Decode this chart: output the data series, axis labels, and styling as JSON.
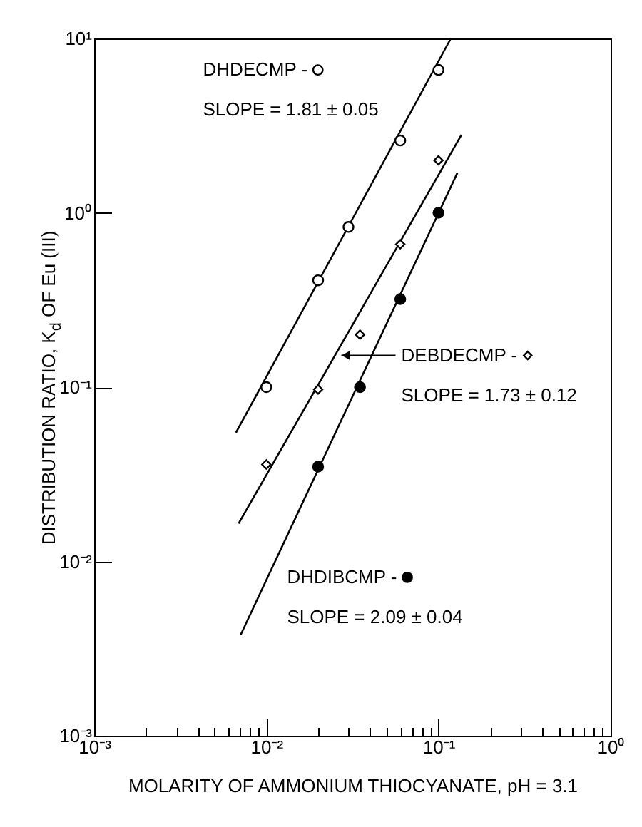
{
  "chart_data": {
    "type": "scatter",
    "xlabel": "MOLARITY OF AMMONIUM THIOCYANATE, pH = 3.1",
    "ylabel": "DISTRIBUTION RATIO, K$_{d}$ OF Eu (III)",
    "log": "xy",
    "grid": false,
    "legend": "top left",
    "xlim": [
      0.001,
      1
    ],
    "ylim": [
      0.001,
      10
    ],
    "xticks": [
      {
        "value": 0.001,
        "label": "10⁻³"
      },
      {
        "value": 0.002,
        "label": null
      },
      {
        "value": 0.003,
        "label": null
      },
      {
        "value": 0.004,
        "label": null
      },
      {
        "value": 0.005,
        "label": null
      },
      {
        "value": 0.006,
        "label": null
      },
      {
        "value": 0.007,
        "label": null
      },
      {
        "value": 0.008,
        "label": null
      },
      {
        "value": 0.009,
        "label": null
      },
      {
        "value": 0.01,
        "label": "10⁻²"
      },
      {
        "value": 0.02,
        "label": null
      },
      {
        "value": 0.03,
        "label": null
      },
      {
        "value": 0.04,
        "label": null
      },
      {
        "value": 0.05,
        "label": null
      },
      {
        "value": 0.06,
        "label": null
      },
      {
        "value": 0.07,
        "label": null
      },
      {
        "value": 0.08,
        "label": null
      },
      {
        "value": 0.09,
        "label": null
      },
      {
        "value": 0.1,
        "label": "10⁻¹"
      },
      {
        "value": 0.2,
        "label": null
      },
      {
        "value": 0.3,
        "label": null
      },
      {
        "value": 0.4,
        "label": null
      },
      {
        "value": 0.5,
        "label": null
      },
      {
        "value": 0.6,
        "label": null
      },
      {
        "value": 0.7,
        "label": null
      },
      {
        "value": 0.8,
        "label": null
      },
      {
        "value": 0.9,
        "label": null
      },
      {
        "value": 1,
        "label": "10⁰"
      }
    ],
    "yticks": [
      {
        "value": 0.001,
        "label": "10⁻³"
      },
      {
        "value": 0.01,
        "label": "10⁻²"
      },
      {
        "value": 0.1,
        "label": "10⁻¹"
      },
      {
        "value": 1,
        "label": "10⁰"
      },
      {
        "value": 10,
        "label": "10¹"
      }
    ],
    "annotations": [
      "SLOPE = 1.81 ± 0.05",
      "SLOPE = 1.73 ± 0.12",
      "SLOPE = 2.09 ± 0.04"
    ],
    "series": [
      {
        "type": "line",
        "color": "#000000",
        "marker": "none",
        "x": [
          0.00666,
          0.118
        ],
        "values": [
          0.0548,
          10
        ]
      },
      {
        "type": "line",
        "color": "#000000",
        "marker": "none",
        "x": [
          0.0069,
          0.136
        ],
        "values": [
          0.0165,
          2.8
        ]
      },
      {
        "type": "line",
        "color": "#000000",
        "marker": "none",
        "x": [
          0.0071,
          0.129
        ],
        "values": [
          0.0038,
          1.7
        ]
      },
      {
        "name": "DHDECMP -",
        "type": "scatter",
        "color": "#000000",
        "marker": "circle",
        "x": [
          0.01,
          0.02,
          0.03,
          0.06,
          0.1
        ],
        "values": [
          0.1,
          0.41,
          0.83,
          2.6,
          6.6
        ]
      },
      {
        "name": "DEBDECMP -",
        "type": "scatter",
        "color": "#000000",
        "marker": "diamond",
        "x": [
          0.01,
          0.02,
          0.035,
          0.06,
          0.1
        ],
        "values": [
          0.036,
          0.097,
          0.2,
          0.66,
          2.0
        ]
      },
      {
        "name": "DHDIBCMP -",
        "type": "scatter",
        "color": "#000000",
        "marker": "circle",
        "x": [
          0.02,
          0.035,
          0.06,
          0.1
        ],
        "values": [
          0.035,
          0.1,
          0.32,
          1.0
        ]
      }
    ]
  }
}
